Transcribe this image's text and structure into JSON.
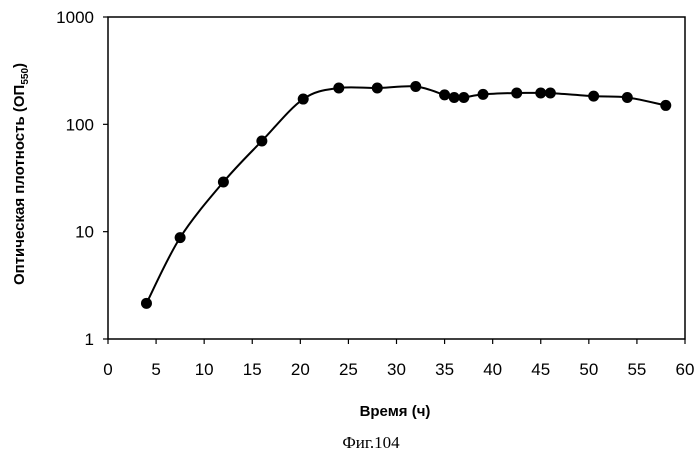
{
  "chart_data": {
    "type": "line",
    "x_title": "Время (ч)",
    "y_title_main": "Оптическая плотность (ОП",
    "y_title_sub": "550",
    "y_title_close": ")",
    "caption": "Фиг.104",
    "y_scale": "log",
    "xlim": [
      0,
      60
    ],
    "ylim": [
      1,
      1000
    ],
    "x_ticks": [
      0,
      5,
      10,
      15,
      20,
      25,
      30,
      35,
      40,
      45,
      50,
      55,
      60
    ],
    "y_ticks": [
      1,
      10,
      100,
      1000
    ],
    "grid": false,
    "legend": "none",
    "series": [
      {
        "x": [
          4,
          7.5,
          12,
          16,
          20.3,
          24,
          28,
          32,
          35,
          36,
          37,
          39,
          42.5,
          45,
          46,
          50.5,
          54,
          58
        ],
        "y": [
          2.15,
          8.8,
          29,
          70,
          172,
          218,
          218,
          225,
          188,
          178,
          178,
          190,
          196,
          196,
          196,
          183,
          178,
          150
        ]
      }
    ]
  },
  "colors": {
    "line": "#000000",
    "markers": "#000000",
    "axes": "#000000"
  }
}
